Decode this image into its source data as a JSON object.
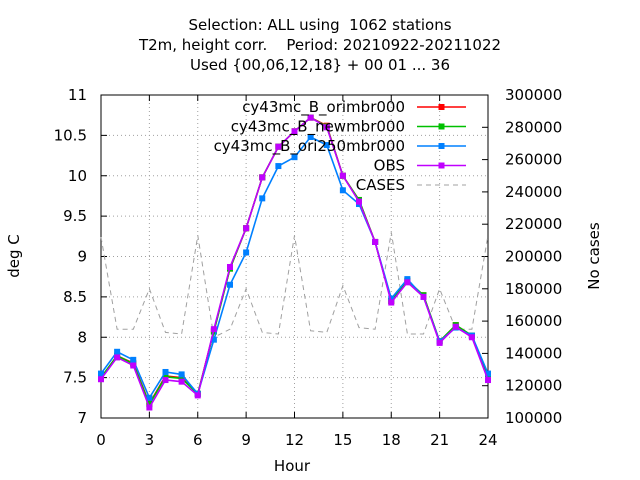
{
  "title_lines": [
    "Selection: ALL using  1062 stations",
    "T2m, height corr.    Period: 20210922-20211022",
    "Used {00,06,12,18} + 00 01 ... 36"
  ],
  "chart_data": {
    "type": "line",
    "xlabel": "Hour",
    "ylabel": "deg C",
    "y2label": "No cases",
    "xlim": [
      0,
      24
    ],
    "ylim": [
      7,
      11
    ],
    "y2lim": [
      100000,
      300000
    ],
    "xticks": [
      0,
      3,
      6,
      9,
      12,
      15,
      18,
      21,
      24
    ],
    "xtick_labels": [
      "0",
      "3",
      "6",
      "9",
      "12",
      "15",
      "18",
      "21",
      "24"
    ],
    "yticks": [
      7,
      7.5,
      8,
      8.5,
      9,
      9.5,
      10,
      10.5,
      11
    ],
    "ytick_labels": [
      "7",
      "7.5",
      "8",
      "8.5",
      "9",
      "9.5",
      "10",
      "10.5",
      "11"
    ],
    "y2ticks": [
      100000,
      120000,
      140000,
      160000,
      180000,
      200000,
      220000,
      240000,
      260000,
      280000,
      300000
    ],
    "y2tick_labels": [
      "100000",
      "120000",
      "140000",
      "160000",
      "180000",
      "200000",
      "220000",
      "240000",
      "260000",
      "280000",
      "300000"
    ],
    "grid": true,
    "legend_position": "top-right",
    "x": [
      0,
      1,
      2,
      3,
      4,
      5,
      6,
      7,
      8,
      9,
      10,
      11,
      12,
      13,
      14,
      15,
      16,
      17,
      18,
      19,
      20,
      21,
      22,
      23,
      24
    ],
    "series": [
      {
        "name": "cy43mc_B_orimbr000",
        "color": "#ff0000",
        "axis": "left",
        "values": [
          7.5,
          7.77,
          7.68,
          7.18,
          7.52,
          7.5,
          7.3,
          8.08,
          8.85,
          9.35,
          9.98,
          10.36,
          10.55,
          10.72,
          10.62,
          10.0,
          9.7,
          9.18,
          8.45,
          8.7,
          8.52,
          7.95,
          8.15,
          8.02,
          7.5
        ]
      },
      {
        "name": "cy43mc_B_newmbr000",
        "color": "#00c000",
        "axis": "left",
        "values": [
          7.5,
          7.77,
          7.67,
          7.17,
          7.51,
          7.49,
          7.3,
          8.07,
          8.85,
          9.35,
          9.98,
          10.36,
          10.55,
          10.72,
          10.61,
          10.0,
          9.7,
          9.18,
          8.45,
          8.7,
          8.52,
          7.95,
          8.15,
          8.02,
          7.5
        ]
      },
      {
        "name": "cy43mc_B_ori250mbr000",
        "color": "#0080ff",
        "axis": "left",
        "values": [
          7.55,
          7.82,
          7.72,
          7.25,
          7.57,
          7.54,
          7.3,
          7.97,
          8.65,
          9.05,
          9.72,
          10.12,
          10.23,
          10.48,
          10.38,
          9.82,
          9.65,
          9.18,
          8.48,
          8.72,
          8.5,
          7.95,
          8.12,
          8.02,
          7.55
        ]
      },
      {
        "name": "OBS",
        "color": "#c000ff",
        "axis": "left",
        "values": [
          7.48,
          7.75,
          7.65,
          7.13,
          7.47,
          7.45,
          7.28,
          8.1,
          8.87,
          9.35,
          9.98,
          10.36,
          10.55,
          10.72,
          10.6,
          10.0,
          9.68,
          9.18,
          8.43,
          8.68,
          8.5,
          7.93,
          8.13,
          8.0,
          7.47
        ]
      },
      {
        "name": "CASES",
        "color": "#a0a0a0",
        "axis": "right",
        "dashed": true,
        "values": [
          212000,
          155000,
          155000,
          180000,
          153000,
          152000,
          213000,
          150000,
          155000,
          180000,
          153000,
          152000,
          213000,
          154000,
          153000,
          182000,
          156000,
          155000,
          215000,
          152000,
          152000,
          180000,
          155000,
          155000,
          213000
        ]
      }
    ]
  }
}
